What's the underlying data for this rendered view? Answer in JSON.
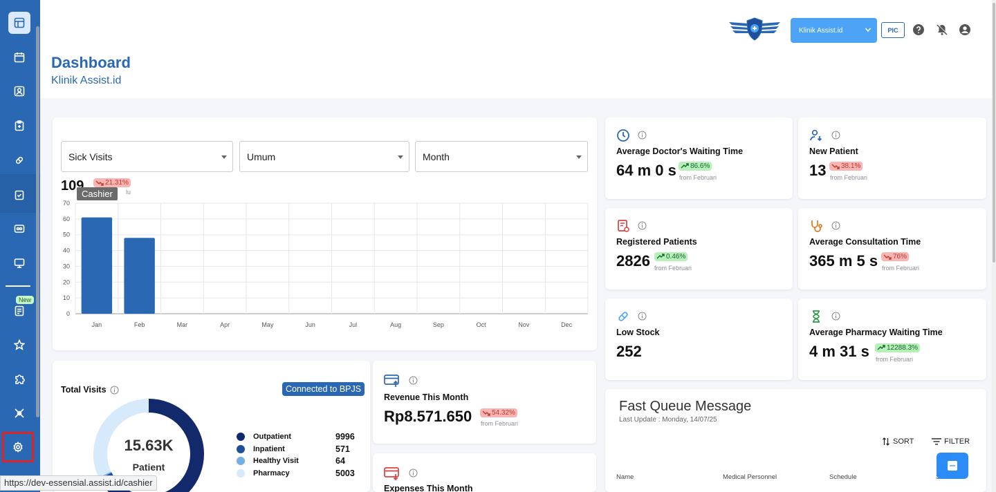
{
  "sidebar": {
    "new_badge": "New"
  },
  "header": {
    "title": "Dashboard",
    "subtitle": "Klinik Assist.id",
    "clinic_select": "Klinik Assist.id",
    "pic_label": "PIC"
  },
  "filters": {
    "metric": "Sick Visits",
    "category": "Umum",
    "period": "Month"
  },
  "visits_summary": {
    "value": "109",
    "change": "21.31%",
    "tooltip": "Cashier",
    "partial_text": "lu"
  },
  "chart_data": {
    "type": "bar",
    "categories": [
      "Jan",
      "Feb",
      "Mar",
      "Apr",
      "May",
      "Jun",
      "Jul",
      "Aug",
      "Sep",
      "Oct",
      "Nov",
      "Dec"
    ],
    "values": [
      61,
      48,
      0,
      0,
      0,
      0,
      0,
      0,
      0,
      0,
      0,
      0
    ],
    "ylim": [
      0,
      70
    ],
    "yticks": [
      "0",
      "10",
      "20",
      "30",
      "40",
      "50",
      "60",
      "70"
    ],
    "grid": true,
    "color": "#2b68b3"
  },
  "stats": [
    {
      "label": "Average Doctor's Waiting Time",
      "value": "64 m 0 s",
      "change": "86.6%",
      "trend": "up",
      "from": "from Februari"
    },
    {
      "label": "New Patient",
      "value": "13",
      "change": "38.1%",
      "trend": "down",
      "from": "from Februari"
    },
    {
      "label": "Registered Patients",
      "value": "2826",
      "change": "0.46%",
      "trend": "up",
      "from": "from Februari"
    },
    {
      "label": "Average Consultation Time",
      "value": "365 m 5 s",
      "change": "76%",
      "trend": "down",
      "from": "from Februari"
    },
    {
      "label": "Low Stock",
      "value": "252"
    },
    {
      "label": "Average Pharmacy Waiting Time",
      "value": "4 m 31 s",
      "change": "12288.3%",
      "trend": "up",
      "from": "from Februari"
    }
  ],
  "total_visits": {
    "title": "Total Visits",
    "connected": "Connected to BPJS",
    "center_value": "15.63K",
    "center_label": "Patient",
    "legend": [
      {
        "name": "Outpatient",
        "value": "9996",
        "color": "#12296b"
      },
      {
        "name": "Inpatient",
        "value": "571",
        "color": "#1e4f9c"
      },
      {
        "name": "Healthy Visit",
        "value": "64",
        "color": "#74aee6"
      },
      {
        "name": "Pharmacy",
        "value": "5003",
        "color": "#d6eafb"
      }
    ]
  },
  "revenue": {
    "label": "Revenue This Month",
    "value": "Rp8.571.650",
    "change": "54.32%",
    "from": "from Februari"
  },
  "expenses": {
    "label": "Expenses This Month"
  },
  "fast_queue": {
    "title": "Fast Queue Message",
    "last_update": "Last Update : Monday, 14/07/25",
    "sort": "SORT",
    "filter": "FILTER",
    "columns": [
      "Name",
      "Medical Personnel",
      "Schedule",
      "S"
    ]
  },
  "status_url": "https://dev-essensial.assist.id/cashier"
}
